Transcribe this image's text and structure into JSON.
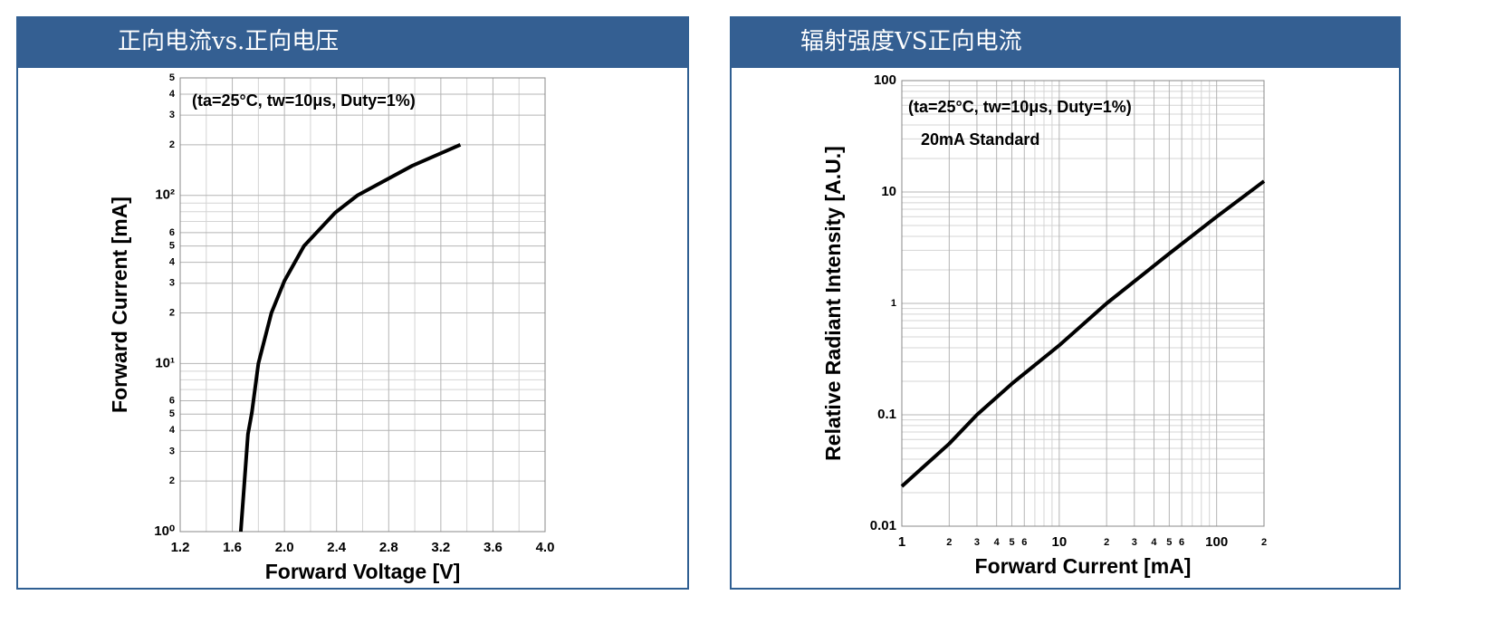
{
  "chart_data": [
    {
      "type": "line",
      "title": "正向电流vs.正向电压",
      "annotation": "(ta=25°C, tw=10μs, Duty=1%)",
      "x_label": "Forward Voltage [V]",
      "y_label": "Forward Current [mA]",
      "x": [
        1.665,
        1.72,
        1.75,
        1.8,
        1.9,
        2.0,
        2.15,
        2.39,
        2.56,
        2.98,
        3.35
      ],
      "values": [
        1,
        3.8,
        5.1,
        10,
        20,
        31,
        50,
        79,
        100,
        150,
        200
      ],
      "color": "#000000",
      "xscale": "linear",
      "yscale": "log",
      "grid": true,
      "xlim": [
        1.2,
        4.0
      ],
      "xticks": [
        1.2,
        1.6,
        {
          "value": 2,
          "label": "2.0"
        },
        2.4,
        2.8,
        3.2,
        3.6,
        {
          "value": 4,
          "label": "4.0"
        }
      ],
      "xminor": [
        1.4,
        1.8,
        2.2,
        2.6,
        3.0,
        3.4,
        3.8
      ],
      "ylim": [
        1,
        500
      ],
      "yticks": [
        {
          "value": 1,
          "label": "10⁰"
        },
        2,
        3,
        4,
        5,
        6,
        {
          "value": 10,
          "label": "10¹"
        },
        {
          "value": 20,
          "label": "2"
        },
        {
          "value": 30,
          "label": "3"
        },
        {
          "value": 40,
          "label": "4"
        },
        {
          "value": 50,
          "label": "5"
        },
        {
          "value": 60,
          "label": "6"
        },
        {
          "value": 100,
          "label": "10²"
        },
        {
          "value": 200,
          "label": "2"
        },
        {
          "value": 300,
          "label": "3"
        },
        {
          "value": 400,
          "label": "4"
        },
        {
          "value": 500,
          "label": "5"
        }
      ],
      "yminor": [
        7,
        8,
        9,
        70,
        80,
        90
      ]
    },
    {
      "type": "line",
      "title": "辐射强度VS正向电流",
      "annotation": "(ta=25°C, tw=10μs, Duty=1%)",
      "annotation2": "20mA Standard",
      "x_label": "Forward Current [mA]",
      "y_label": "Relative Radiant Intensity [A.U.]",
      "x": [
        1,
        2,
        3,
        5,
        10,
        20,
        50,
        100,
        200
      ],
      "values": [
        0.0228,
        0.055,
        0.1,
        0.19,
        0.42,
        1,
        2.8,
        6,
        12.5
      ],
      "color": "#000000",
      "xscale": "log",
      "yscale": "log",
      "grid": true,
      "xlim": [
        1,
        200
      ],
      "xticks": [
        1,
        2,
        3,
        4,
        5,
        6,
        10,
        {
          "value": 20,
          "label": "2"
        },
        {
          "value": 30,
          "label": "3"
        },
        {
          "value": 40,
          "label": "4"
        },
        {
          "value": 50,
          "label": "5"
        },
        {
          "value": 60,
          "label": "6"
        },
        100,
        {
          "value": 200,
          "label": "2"
        }
      ],
      "xminor": [
        7,
        8,
        9,
        70,
        80,
        90
      ],
      "ylim": [
        0.01,
        100
      ],
      "yticks": [
        0.01,
        0.1,
        1,
        10,
        100
      ],
      "yminor": [
        0.02,
        0.03,
        0.04,
        0.05,
        0.06,
        0.07,
        0.08,
        0.09,
        0.2,
        0.3,
        0.4,
        0.5,
        0.6,
        0.7,
        0.8,
        0.9,
        2,
        3,
        4,
        5,
        6,
        7,
        8,
        9,
        20,
        30,
        40,
        50,
        60,
        70,
        80,
        90
      ]
    }
  ]
}
